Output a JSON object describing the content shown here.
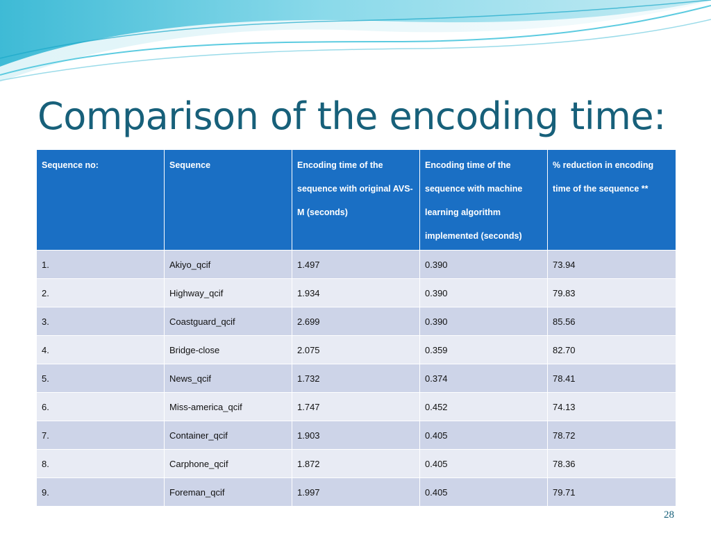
{
  "slide": {
    "title": "Comparison of the encoding time:",
    "page_number": "28"
  },
  "table": {
    "headers": [
      "Sequence no:",
      "Sequence",
      "Encoding time of the sequence with original AVS-M (seconds)",
      "Encoding time of the sequence with machine learning algorithm implemented (seconds)",
      "% reduction in encoding time of the sequence **"
    ],
    "rows": [
      [
        "1.",
        "Akiyo_qcif",
        "1.497",
        "0.390",
        "73.94"
      ],
      [
        "2.",
        "Highway_qcif",
        "1.934",
        "0.390",
        "79.83"
      ],
      [
        "3.",
        "Coastguard_qcif",
        "2.699",
        "0.390",
        "85.56"
      ],
      [
        "4.",
        "Bridge-close",
        "2.075",
        "0.359",
        "82.70"
      ],
      [
        "5.",
        "News_qcif",
        "1.732",
        "0.374",
        "78.41"
      ],
      [
        "6.",
        "Miss-america_qcif",
        "1.747",
        "0.452",
        "74.13"
      ],
      [
        "7.",
        "Container_qcif",
        "1.903",
        "0.405",
        "78.72"
      ],
      [
        "8.",
        "Carphone_qcif",
        "1.872",
        "0.405",
        "78.36"
      ],
      [
        "9.",
        "Foreman_qcif",
        "1.997",
        "0.405",
        "79.71"
      ]
    ]
  },
  "colors": {
    "title": "#17607a",
    "header_bg": "#1a6fc4",
    "row_odd": "#cdd4e8",
    "row_even": "#e8ebf4",
    "wave_light": "#c9ecf3",
    "wave_mid": "#5ccbe0",
    "wave_dark": "#1aa8c9"
  }
}
